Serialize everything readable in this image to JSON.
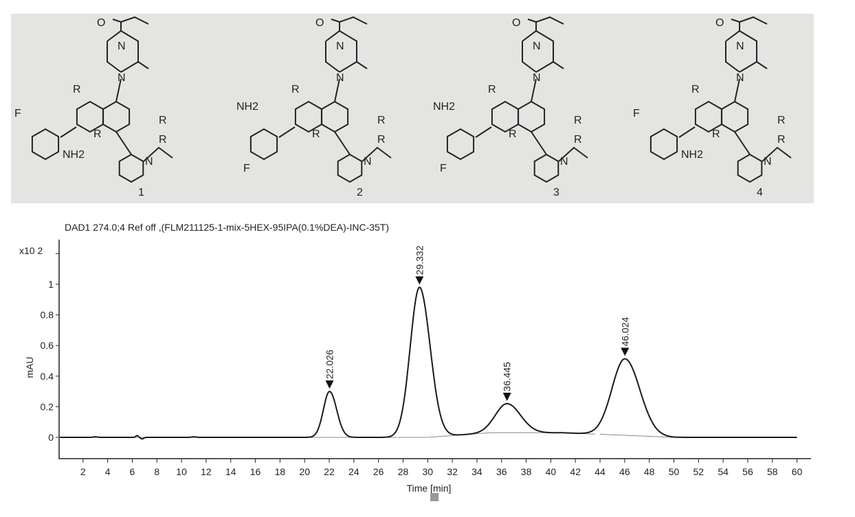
{
  "structures": {
    "compounds": [
      {
        "number": "1",
        "aniline_sub": "F",
        "amine": "NH2",
        "methyl_style": "hashed"
      },
      {
        "number": "2",
        "aniline_sub": "F",
        "amine": "NH2",
        "methyl_style": "wedge"
      },
      {
        "number": "3",
        "aniline_sub": "F",
        "amine": "NH2",
        "methyl_style": "wedge"
      },
      {
        "number": "4",
        "aniline_sub": "F",
        "amine": "NH2",
        "methyl_style": "hashed"
      }
    ],
    "atom_labels": {
      "oxygen": "O",
      "nitrogen": "N",
      "r_group": "R"
    }
  },
  "chart_data": {
    "type": "line",
    "title": "DAD1 274.0;4 Ref off ,(FLM211125-1-mix-5HEX-95IPA(0.1%DEA)-INC-35T)",
    "xlabel": "Time [min]",
    "ylabel": "mAU",
    "y_multiplier": "x10 2",
    "xlim": [
      0,
      61
    ],
    "ylim": [
      -0.14,
      1.3
    ],
    "xticks": [
      2,
      4,
      6,
      8,
      10,
      12,
      14,
      16,
      18,
      20,
      22,
      24,
      26,
      28,
      30,
      32,
      34,
      36,
      38,
      40,
      42,
      44,
      46,
      48,
      50,
      52,
      54,
      56,
      58,
      60
    ],
    "yticks": [
      {
        "v": 0,
        "label": "0"
      },
      {
        "v": 0.2,
        "label": "0.2"
      },
      {
        "v": 0.4,
        "label": "0.4"
      },
      {
        "v": 0.6,
        "label": "0.6"
      },
      {
        "v": 0.8,
        "label": "0.8"
      },
      {
        "v": 1,
        "label": "1"
      }
    ],
    "grid": false,
    "peaks": [
      {
        "rt": 22.026,
        "label": "22.026",
        "height": 0.3,
        "width": 0.5
      },
      {
        "rt": 29.332,
        "label": "29.332",
        "height": 0.98,
        "width": 0.75
      },
      {
        "rt": 36.445,
        "label": "36.445",
        "height": 0.19,
        "width": 0.95
      },
      {
        "rt": 46.024,
        "label": "46.024",
        "height": 0.5,
        "width": 1.05
      }
    ],
    "line_color": "#1a1a1a",
    "baseline_color": "#888888"
  }
}
